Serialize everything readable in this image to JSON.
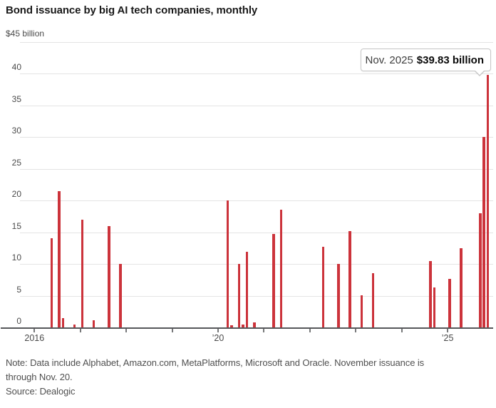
{
  "header": {
    "title": "Bond issuance by big AI tech companies, monthly"
  },
  "tooltip": {
    "label": "Nov. 2025",
    "value_text": "$39.83 billion"
  },
  "footer": {
    "note_lines": [
      "Note: Data include Alphabet, Amazon.com, MetaPlatforms, Microsoft and Oracle. November issuance is",
      "through Nov. 20."
    ],
    "source": "Source: Dealogic"
  },
  "chart_data": {
    "type": "bar",
    "title": "Bond issuance by big AI tech companies, monthly",
    "unit_label": "$45 billion",
    "ylabel": "$ billion",
    "ylim": [
      0,
      45
    ],
    "y_ticks": [
      0,
      5,
      10,
      15,
      20,
      25,
      30,
      35,
      40
    ],
    "x_years": [
      2016,
      2017,
      2018,
      2019,
      2020,
      2021,
      2022,
      2023,
      2024,
      2025
    ],
    "x_tick_labels": {
      "2016": "2016",
      "2020": "’20",
      "2025": "’25"
    },
    "grid": true,
    "bar_color": "#cc333b",
    "highlight": {
      "date": "2025-11",
      "label": "Nov. 2025",
      "value": 39.83
    },
    "bars": [
      {
        "date": "2016-05",
        "value": 14.0
      },
      {
        "date": "2016-07",
        "value": 21.5
      },
      {
        "date": "2016-08",
        "value": 1.5
      },
      {
        "date": "2016-11",
        "value": 0.5
      },
      {
        "date": "2017-01",
        "value": 17.0
      },
      {
        "date": "2017-04",
        "value": 1.1
      },
      {
        "date": "2017-08",
        "value": 16.0
      },
      {
        "date": "2017-11",
        "value": 10.0
      },
      {
        "date": "2020-03",
        "value": 20.0
      },
      {
        "date": "2020-04",
        "value": 0.3
      },
      {
        "date": "2020-06",
        "value": 10.0
      },
      {
        "date": "2020-07",
        "value": 0.4
      },
      {
        "date": "2020-08",
        "value": 11.9
      },
      {
        "date": "2020-10",
        "value": 0.8
      },
      {
        "date": "2021-03",
        "value": 14.7
      },
      {
        "date": "2021-05",
        "value": 18.5
      },
      {
        "date": "2022-04",
        "value": 12.75
      },
      {
        "date": "2022-08",
        "value": 10.0
      },
      {
        "date": "2022-11",
        "value": 15.2
      },
      {
        "date": "2023-02",
        "value": 5.1
      },
      {
        "date": "2023-05",
        "value": 8.5
      },
      {
        "date": "2024-08",
        "value": 10.5
      },
      {
        "date": "2024-09",
        "value": 6.25
      },
      {
        "date": "2025-01",
        "value": 7.6
      },
      {
        "date": "2025-04",
        "value": 12.5
      },
      {
        "date": "2025-09",
        "value": 18.0
      },
      {
        "date": "2025-10",
        "value": 30.0
      },
      {
        "date": "2025-11",
        "value": 39.83
      }
    ]
  }
}
